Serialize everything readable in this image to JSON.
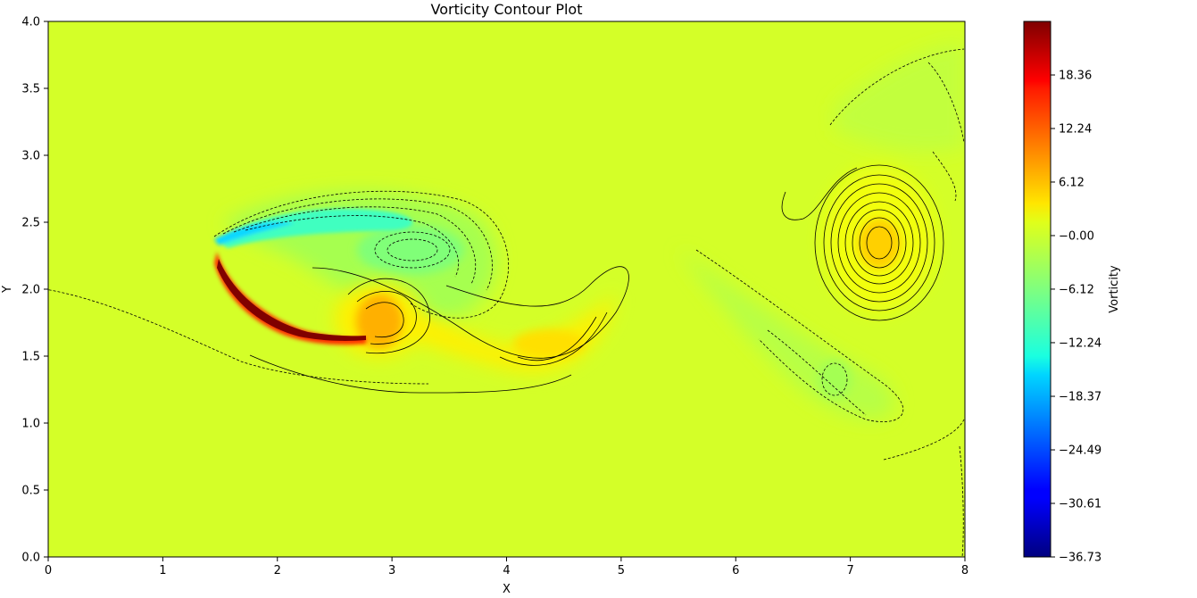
{
  "chart_data": {
    "type": "heatmap",
    "subtype": "contour",
    "title": "Vorticity Contour Plot",
    "xlabel": "X",
    "ylabel": "Y",
    "xlim": [
      0,
      8
    ],
    "ylim": [
      0,
      4
    ],
    "x_ticks": [
      0,
      1,
      2,
      3,
      4,
      5,
      6,
      7,
      8
    ],
    "y_ticks": [
      0.0,
      0.5,
      1.0,
      1.5,
      2.0,
      2.5,
      3.0,
      3.5,
      4.0
    ],
    "y_tick_labels": [
      "0.0",
      "0.5",
      "1.0",
      "1.5",
      "2.0",
      "2.5",
      "3.0",
      "3.5",
      "4.0"
    ],
    "colorbar": {
      "label": "Vorticity",
      "min": -36.73,
      "max": 24.48,
      "ticks": [
        -36.73,
        -30.61,
        -24.49,
        -18.37,
        -12.24,
        -6.12,
        -0.0,
        6.12,
        12.24,
        18.36
      ],
      "tick_labels": [
        "−36.73",
        "−30.61",
        "−24.49",
        "−18.37",
        "−12.24",
        "−6.12",
        "−0.00",
        "6.12",
        "12.24",
        "18.36"
      ],
      "colormap": "jet"
    },
    "background_value": 0.0,
    "features": [
      {
        "kind": "positive-vortex",
        "x": 7.22,
        "y": 2.33,
        "peak": 5.5
      },
      {
        "kind": "positive-vortex",
        "x": 2.9,
        "y": 1.82,
        "peak": 8.0
      },
      {
        "kind": "positive-vortex",
        "x": 4.4,
        "y": 1.55,
        "peak": 5.0
      },
      {
        "kind": "negative-vortex",
        "x": 3.05,
        "y": 2.3,
        "peak": -6.0
      },
      {
        "kind": "negative-vortex",
        "x": 6.9,
        "y": 1.3,
        "peak": -2.5
      },
      {
        "kind": "negative-shear-layer",
        "x": 1.9,
        "y": 2.45,
        "peak": -15.0
      },
      {
        "kind": "positive-shear-layer",
        "x": 2.0,
        "y": 1.75,
        "peak": 24.0
      }
    ]
  }
}
